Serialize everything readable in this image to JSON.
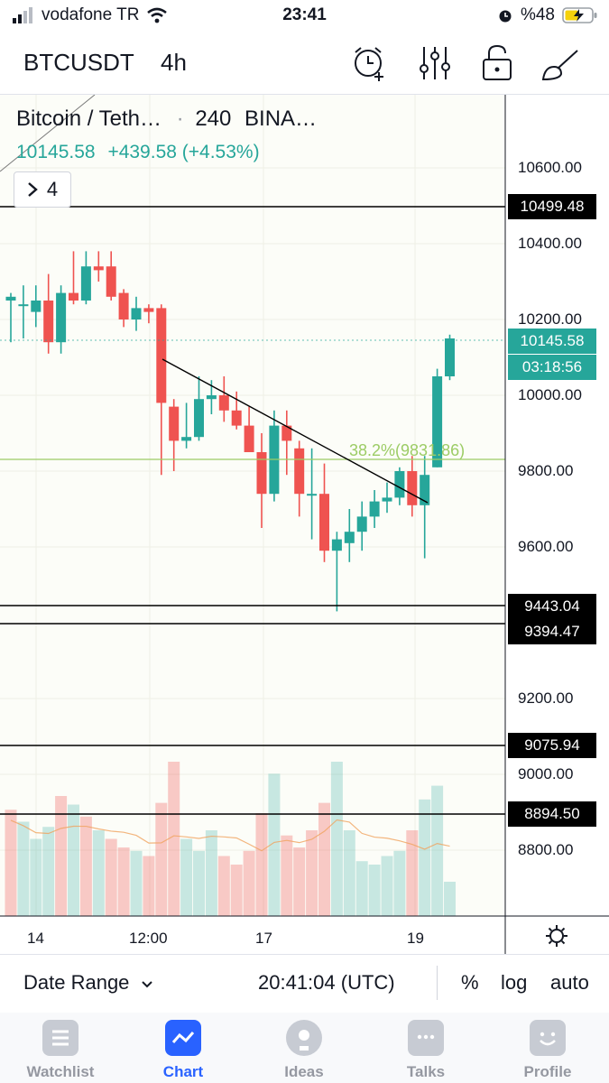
{
  "status_bar": {
    "carrier": "vodafone TR",
    "time": "23:41",
    "battery": "%48"
  },
  "header": {
    "symbol": "BTCUSDT",
    "interval": "4h",
    "icons": [
      "alarm-add-icon",
      "indicators-icon",
      "lock-icon",
      "drawing-icon"
    ]
  },
  "legend": {
    "title": "Bitcoin / Teth…",
    "separator": "·",
    "interval": "240",
    "exchange": "BINA…",
    "last_price": "10145.58",
    "change": "+439.58 (+4.53%)",
    "collapsed_count": "4"
  },
  "price_axis": {
    "ticks": [
      "10600.00",
      "10400.00",
      "10200.00",
      "10000.00",
      "9800.00",
      "9600.00",
      "9200.00",
      "9000.00",
      "8800.00"
    ]
  },
  "price_lines": {
    "levels": [
      {
        "label": "10499.48"
      },
      {
        "label": "9443.04"
      },
      {
        "label": "9394.47"
      },
      {
        "label": "9075.94"
      },
      {
        "label": "8894.50"
      }
    ],
    "current_price": "10145.58",
    "countdown": "03:18:56"
  },
  "fib": {
    "label": "38.2%(9831.86)"
  },
  "time_axis": {
    "ticks": [
      "14",
      "12:00",
      "17",
      "19"
    ]
  },
  "bottom_bar": {
    "date_range": "Date Range",
    "clock": "20:41:04 (UTC)",
    "percent": "%",
    "log": "log",
    "auto": "auto"
  },
  "tabs": [
    {
      "label": "Watchlist",
      "icon": "watchlist-icon"
    },
    {
      "label": "Chart",
      "icon": "chart-icon",
      "active": true
    },
    {
      "label": "Ideas",
      "icon": "ideas-icon"
    },
    {
      "label": "Talks",
      "icon": "talks-icon"
    },
    {
      "label": "Profile",
      "icon": "profile-icon"
    }
  ],
  "colors": {
    "up": "#26a69a",
    "down": "#ef5350",
    "accent": "#2962ff",
    "fib": "#9ccc65"
  },
  "chart_data": {
    "type": "candlestick",
    "symbol": "BTCUSDT",
    "interval": "4h",
    "ylim": [
      8600,
      10780
    ],
    "candles": [
      {
        "o": 10250,
        "h": 10270,
        "l": 10140,
        "c": 10260
      },
      {
        "o": 10240,
        "h": 10290,
        "l": 10150,
        "c": 10240
      },
      {
        "o": 10220,
        "h": 10290,
        "l": 10180,
        "c": 10250
      },
      {
        "o": 10250,
        "h": 10320,
        "l": 10110,
        "c": 10140
      },
      {
        "o": 10140,
        "h": 10290,
        "l": 10110,
        "c": 10270
      },
      {
        "o": 10270,
        "h": 10380,
        "l": 10240,
        "c": 10250
      },
      {
        "o": 10250,
        "h": 10380,
        "l": 10240,
        "c": 10340
      },
      {
        "o": 10340,
        "h": 10380,
        "l": 10300,
        "c": 10330
      },
      {
        "o": 10340,
        "h": 10380,
        "l": 10250,
        "c": 10260
      },
      {
        "o": 10270,
        "h": 10280,
        "l": 10180,
        "c": 10200
      },
      {
        "o": 10200,
        "h": 10260,
        "l": 10170,
        "c": 10230
      },
      {
        "o": 10230,
        "h": 10240,
        "l": 10190,
        "c": 10220
      },
      {
        "o": 10230,
        "h": 10240,
        "l": 9790,
        "c": 9980
      },
      {
        "o": 9970,
        "h": 9990,
        "l": 9800,
        "c": 9880
      },
      {
        "o": 9880,
        "h": 9980,
        "l": 9860,
        "c": 9890
      },
      {
        "o": 9890,
        "h": 10050,
        "l": 9880,
        "c": 9990
      },
      {
        "o": 9990,
        "h": 10040,
        "l": 9950,
        "c": 10000
      },
      {
        "o": 10000,
        "h": 10050,
        "l": 9930,
        "c": 9960
      },
      {
        "o": 9960,
        "h": 10010,
        "l": 9910,
        "c": 9920
      },
      {
        "o": 9920,
        "h": 9970,
        "l": 9870,
        "c": 9850
      },
      {
        "o": 9850,
        "h": 9900,
        "l": 9650,
        "c": 9740
      },
      {
        "o": 9740,
        "h": 9960,
        "l": 9720,
        "c": 9920
      },
      {
        "o": 9920,
        "h": 9960,
        "l": 9790,
        "c": 9880
      },
      {
        "o": 9860,
        "h": 9880,
        "l": 9680,
        "c": 9740
      },
      {
        "o": 9740,
        "h": 9860,
        "l": 9620,
        "c": 9740
      },
      {
        "o": 9740,
        "h": 9820,
        "l": 9560,
        "c": 9590
      },
      {
        "o": 9590,
        "h": 9640,
        "l": 9430,
        "c": 9620
      },
      {
        "o": 9610,
        "h": 9700,
        "l": 9560,
        "c": 9640
      },
      {
        "o": 9640,
        "h": 9720,
        "l": 9590,
        "c": 9680
      },
      {
        "o": 9680,
        "h": 9750,
        "l": 9650,
        "c": 9720
      },
      {
        "o": 9720,
        "h": 9770,
        "l": 9690,
        "c": 9730
      },
      {
        "o": 9730,
        "h": 9810,
        "l": 9710,
        "c": 9800
      },
      {
        "o": 9800,
        "h": 9840,
        "l": 9680,
        "c": 9710
      },
      {
        "o": 9710,
        "h": 9840,
        "l": 9570,
        "c": 9790
      },
      {
        "o": 9810,
        "h": 10070,
        "l": 9810,
        "c": 10050
      },
      {
        "o": 10050,
        "h": 10160,
        "l": 10040,
        "c": 10150
      }
    ],
    "volume_relative": [
      0.62,
      0.55,
      0.45,
      0.52,
      0.7,
      0.65,
      0.58,
      0.5,
      0.45,
      0.4,
      0.38,
      0.35,
      0.66,
      0.9,
      0.45,
      0.38,
      0.5,
      0.35,
      0.3,
      0.38,
      0.6,
      0.83,
      0.47,
      0.4,
      0.5,
      0.66,
      0.9,
      0.5,
      0.32,
      0.3,
      0.35,
      0.38,
      0.5,
      0.68,
      0.76,
      0.2
    ],
    "volume_up": [
      false,
      true,
      true,
      true,
      false,
      true,
      false,
      true,
      false,
      false,
      true,
      false,
      false,
      false,
      true,
      true,
      true,
      false,
      false,
      false,
      false,
      true,
      false,
      false,
      false,
      false,
      true,
      true,
      true,
      true,
      true,
      true,
      false,
      true,
      true,
      true
    ]
  }
}
